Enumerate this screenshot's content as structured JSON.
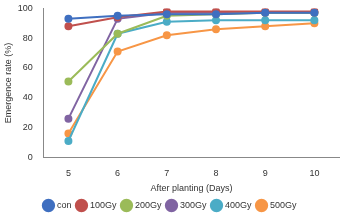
{
  "chart_data": {
    "type": "line",
    "x_label": "After planting (Days)",
    "y_label": "Emergence rate (%)",
    "categories": [
      "5",
      "6",
      "7",
      "8",
      "9",
      "10"
    ],
    "series": [
      {
        "name": "con",
        "color": "#3f6fc0",
        "values": [
          93,
          95,
          96,
          96,
          97,
          97
        ]
      },
      {
        "name": "100Gy",
        "color": "#c0504d",
        "values": [
          88,
          94,
          98,
          98,
          98,
          98
        ]
      },
      {
        "name": "200Gy",
        "color": "#9bbb59",
        "values": [
          51,
          83,
          95,
          96,
          97,
          97
        ]
      },
      {
        "name": "300Gy",
        "color": "#8064a2",
        "values": [
          26,
          93,
          97,
          97,
          97,
          97
        ]
      },
      {
        "name": "400Gy",
        "color": "#4bacc6",
        "values": [
          11,
          83,
          91,
          92,
          92,
          92
        ]
      },
      {
        "name": "500Gy",
        "color": "#f79646",
        "values": [
          16,
          71,
          82,
          86,
          88,
          90
        ]
      }
    ],
    "ylim": [
      0,
      100
    ],
    "yticks": [
      0,
      20,
      40,
      60,
      80,
      100
    ],
    "grid": false,
    "legend": "bottom",
    "marker": "circle"
  }
}
